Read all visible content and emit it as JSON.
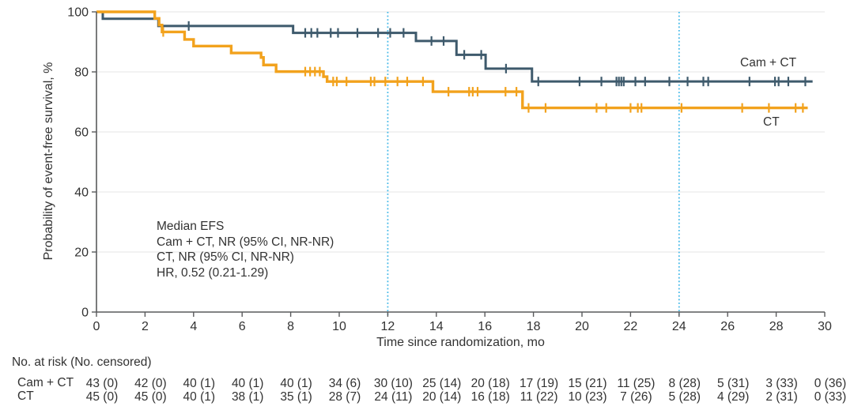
{
  "chart_data": {
    "type": "line",
    "subtype": "kaplan-meier-step",
    "title": "",
    "xlabel": "Time since randomization, mo",
    "ylabel": "Probability of event-free survival, %",
    "xlim": [
      0,
      30
    ],
    "ylim": [
      0,
      100
    ],
    "x_ticks": [
      0,
      2,
      4,
      6,
      8,
      10,
      12,
      14,
      16,
      18,
      20,
      22,
      24,
      26,
      28,
      30
    ],
    "y_ticks": [
      0,
      20,
      40,
      60,
      80,
      100
    ],
    "grid": "horizontal",
    "grid_color": "#ebebeb",
    "axis_color": "#595a5c",
    "text_color": "#323232",
    "reference_lines": {
      "x": [
        12,
        24
      ],
      "color": "#45b9e8",
      "style": "dotted"
    },
    "annotations": [
      "Median EFS",
      "Cam + CT, NR (95% CI, NR-NR)",
      "CT, NR (95% CI, NR-NR)",
      "HR, 0.52 (0.21-1.29)"
    ],
    "series": [
      {
        "name": "Cam + CT",
        "color": "#3e5a6c",
        "line_width": 3,
        "end_t": 29.5,
        "steps": [
          [
            0,
            100
          ],
          [
            0.26,
            97.7
          ],
          [
            2.55,
            95.3
          ],
          [
            8.1,
            93.0
          ],
          [
            13.16,
            90.3
          ],
          [
            14.83,
            85.7
          ],
          [
            16.03,
            81.1
          ],
          [
            17.94,
            76.8
          ]
        ],
        "censor_marks": [
          [
            3.8,
            95.3
          ],
          [
            8.6,
            93.0
          ],
          [
            8.85,
            93.0
          ],
          [
            9.1,
            93.0
          ],
          [
            9.65,
            93.0
          ],
          [
            9.95,
            93.0
          ],
          [
            10.75,
            93.0
          ],
          [
            11.6,
            93.0
          ],
          [
            12.1,
            93.0
          ],
          [
            12.65,
            93.0
          ],
          [
            13.8,
            90.3
          ],
          [
            14.3,
            90.3
          ],
          [
            15.15,
            85.7
          ],
          [
            15.85,
            85.7
          ],
          [
            16.87,
            81.1
          ],
          [
            18.2,
            76.8
          ],
          [
            19.9,
            76.8
          ],
          [
            20.8,
            76.8
          ],
          [
            21.42,
            76.8
          ],
          [
            21.52,
            76.8
          ],
          [
            21.62,
            76.8
          ],
          [
            21.72,
            76.8
          ],
          [
            22.2,
            76.8
          ],
          [
            22.6,
            76.8
          ],
          [
            23.6,
            76.8
          ],
          [
            24.35,
            76.8
          ],
          [
            25.0,
            76.8
          ],
          [
            25.2,
            76.8
          ],
          [
            26.9,
            76.8
          ],
          [
            27.95,
            76.8
          ],
          [
            28.1,
            76.8
          ],
          [
            28.5,
            76.8
          ],
          [
            29.2,
            76.8
          ]
        ]
      },
      {
        "name": "CT",
        "color": "#f2a21d",
        "line_width": 3.4,
        "end_t": 29.3,
        "steps": [
          [
            0,
            100
          ],
          [
            2.4,
            97.8
          ],
          [
            2.58,
            95.6
          ],
          [
            2.7,
            93.3
          ],
          [
            3.63,
            90.8
          ],
          [
            4.0,
            88.6
          ],
          [
            5.55,
            86.3
          ],
          [
            6.78,
            84.8
          ],
          [
            6.88,
            82.3
          ],
          [
            7.4,
            80.1
          ],
          [
            9.35,
            78.4
          ],
          [
            9.5,
            76.8
          ],
          [
            13.86,
            73.4
          ],
          [
            17.55,
            68.0
          ]
        ],
        "censor_marks": [
          [
            2.75,
            93.3
          ],
          [
            8.6,
            80.1
          ],
          [
            8.8,
            80.1
          ],
          [
            9.0,
            80.1
          ],
          [
            9.2,
            80.1
          ],
          [
            9.75,
            76.8
          ],
          [
            9.9,
            76.8
          ],
          [
            10.3,
            76.8
          ],
          [
            11.3,
            76.8
          ],
          [
            11.45,
            76.8
          ],
          [
            11.9,
            76.8
          ],
          [
            12.4,
            76.8
          ],
          [
            12.8,
            76.8
          ],
          [
            13.45,
            76.8
          ],
          [
            14.5,
            73.4
          ],
          [
            15.35,
            73.4
          ],
          [
            15.5,
            73.4
          ],
          [
            15.7,
            73.4
          ],
          [
            16.85,
            73.4
          ],
          [
            17.3,
            73.4
          ],
          [
            17.8,
            68.0
          ],
          [
            18.5,
            68.0
          ],
          [
            20.6,
            68.0
          ],
          [
            21.0,
            68.0
          ],
          [
            22.0,
            68.0
          ],
          [
            22.3,
            68.0
          ],
          [
            22.45,
            68.0
          ],
          [
            24.1,
            68.0
          ],
          [
            26.6,
            68.0
          ],
          [
            27.7,
            68.0
          ],
          [
            28.8,
            68.0
          ],
          [
            29.1,
            68.0
          ]
        ]
      }
    ]
  },
  "risk_table": {
    "header": "No. at risk (No. censored)",
    "time_points": [
      0,
      2,
      4,
      6,
      8,
      10,
      12,
      14,
      16,
      18,
      20,
      22,
      24,
      26,
      28,
      30
    ],
    "rows": [
      {
        "label": "Cam + CT",
        "values": [
          "43 (0)",
          "42 (0)",
          "40 (1)",
          "40 (1)",
          "40 (1)",
          "34 (6)",
          "30 (10)",
          "25 (14)",
          "20 (18)",
          "17 (19)",
          "15 (21)",
          "11 (25)",
          "8 (28)",
          "5 (31)",
          "3 (33)",
          "0 (36)"
        ]
      },
      {
        "label": "CT",
        "values": [
          "45 (0)",
          "45 (0)",
          "40 (1)",
          "38 (1)",
          "35 (1)",
          "28 (7)",
          "24 (11)",
          "20 (14)",
          "16 (18)",
          "11 (22)",
          "10 (23)",
          "7 (26)",
          "5 (28)",
          "4 (29)",
          "2 (31)",
          "0 (33)"
        ]
      }
    ]
  }
}
